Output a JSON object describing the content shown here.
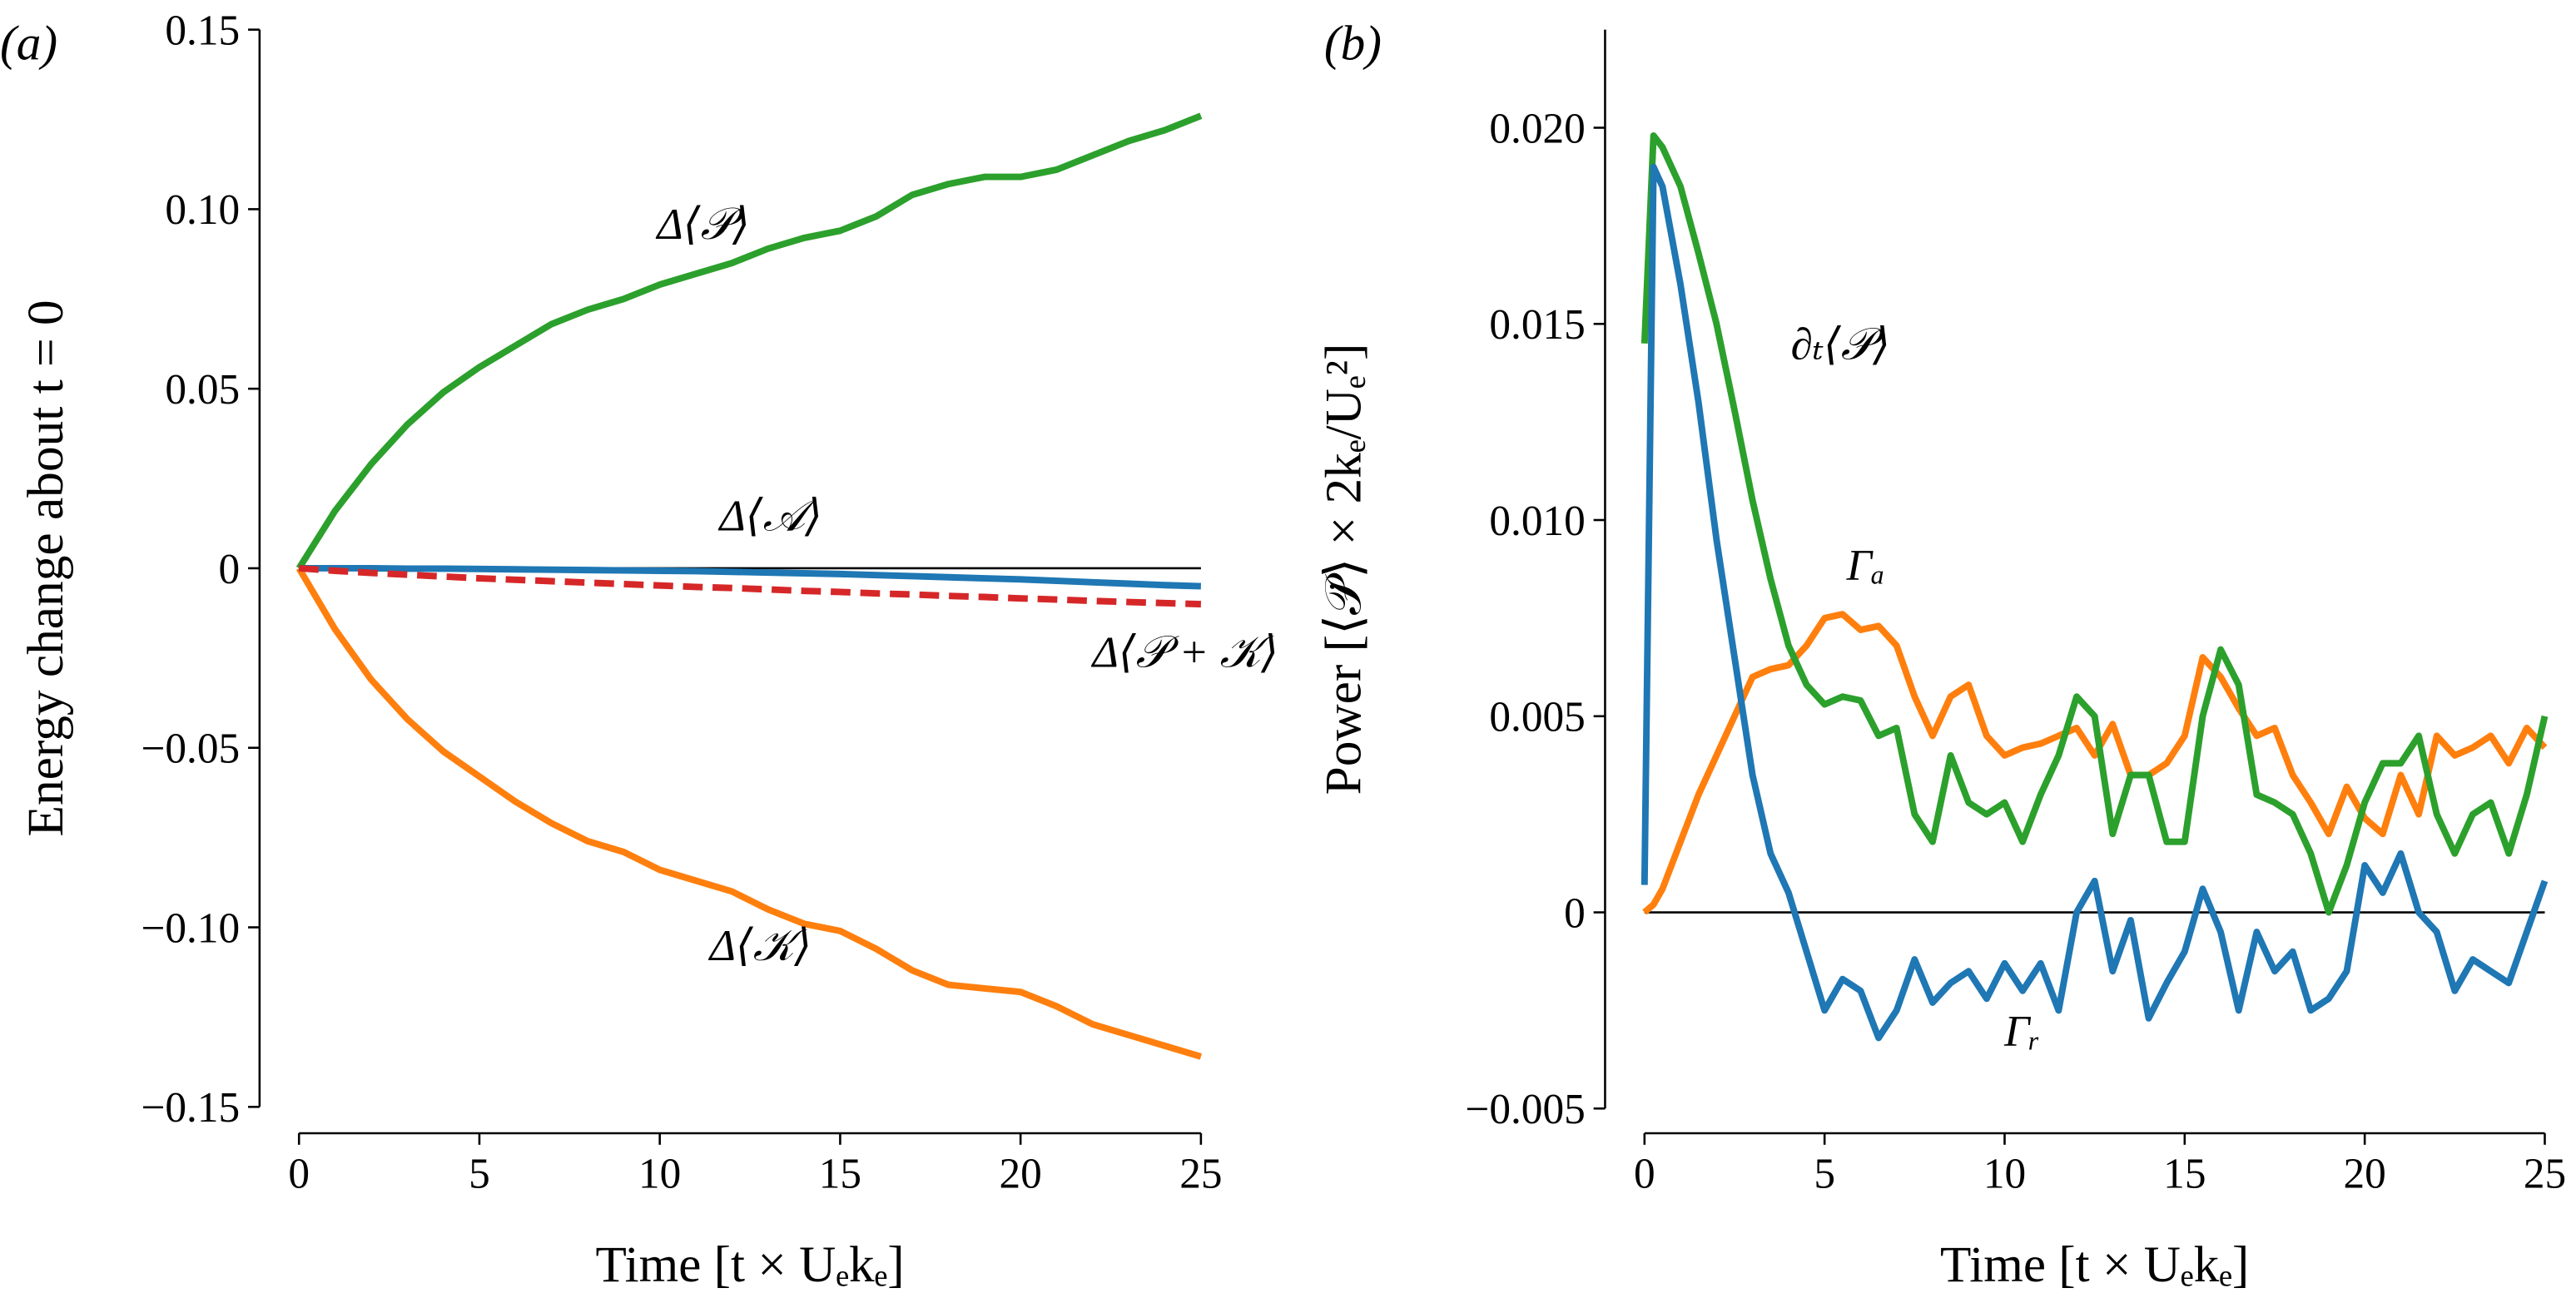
{
  "chart_data": [
    {
      "type": "line",
      "panel": "(a)",
      "ylabel": "Energy change about t = 0",
      "xlabel": "Time [t × Uₑkₑ]",
      "xlim": [
        0,
        25
      ],
      "xticks": [
        0,
        5,
        10,
        15,
        20,
        25
      ],
      "ylim": [
        -0.15,
        0.15
      ],
      "yticks": [
        {
          "value": -0.15,
          "label": "−0.15"
        },
        {
          "value": -0.1,
          "label": "−0.10"
        },
        {
          "value": -0.05,
          "label": "−0.05"
        },
        0,
        0.05,
        {
          "value": 0.1,
          "label": "0.10"
        },
        0.15
      ],
      "hline": 0,
      "x": [
        0,
        1,
        2,
        3,
        4,
        5,
        6,
        7,
        8,
        9,
        10,
        11,
        12,
        13,
        14,
        15,
        16,
        17,
        18,
        19,
        20,
        21,
        22,
        23,
        24,
        25
      ],
      "series": [
        {
          "color": "#2ca02c",
          "values": [
            0,
            0.016,
            0.029,
            0.04,
            0.049,
            0.056,
            0.062,
            0.068,
            0.072,
            0.075,
            0.079,
            0.082,
            0.085,
            0.089,
            0.092,
            0.094,
            0.098,
            0.104,
            0.107,
            0.109,
            0.109,
            0.111,
            0.115,
            0.119,
            0.122,
            0.126
          ]
        },
        {
          "color": "#ff7f0e",
          "values": [
            0,
            -0.017,
            -0.031,
            -0.042,
            -0.051,
            -0.058,
            -0.065,
            -0.071,
            -0.076,
            -0.079,
            -0.084,
            -0.087,
            -0.09,
            -0.095,
            -0.099,
            -0.101,
            -0.106,
            -0.112,
            -0.116,
            -0.117,
            -0.118,
            -0.122,
            -0.127,
            -0.13,
            -0.133,
            -0.136
          ]
        },
        {
          "color": "#1f77b4",
          "values": [
            0,
            0,
            0,
            -0.0001,
            -0.0001,
            -0.0002,
            -0.0003,
            -0.0004,
            -0.0005,
            -0.0006,
            -0.0007,
            -0.0008,
            -0.001,
            -0.0012,
            -0.0014,
            -0.0016,
            -0.0019,
            -0.0022,
            -0.0025,
            -0.0028,
            -0.0031,
            -0.0035,
            -0.0039,
            -0.0043,
            -0.0047,
            -0.005
          ]
        },
        {
          "color": "#d62728",
          "dash": true,
          "values": [
            0,
            -0.0007,
            -0.0013,
            -0.0018,
            -0.0023,
            -0.0028,
            -0.0032,
            -0.0036,
            -0.004,
            -0.0044,
            -0.0048,
            -0.0052,
            -0.0055,
            -0.0059,
            -0.0063,
            -0.0066,
            -0.007,
            -0.0073,
            -0.0077,
            -0.008,
            -0.0084,
            -0.0087,
            -0.0091,
            -0.0094,
            -0.0097,
            -0.01
          ]
        }
      ],
      "annotations": [
        "Δ⟨𝒫⟩",
        "Δ⟨𝒜⟩",
        "Δ⟨𝒫 + 𝒦⟩",
        "Δ⟨𝒦⟩"
      ]
    },
    {
      "type": "line",
      "panel": "(b)",
      "ylabel": "Power [⟨𝒫̇⟩ × 2kₑ/Uₑ²]",
      "xlabel": "Time [t × Uₑkₑ]",
      "xlim": [
        0,
        25
      ],
      "xticks": [
        0,
        5,
        10,
        15,
        20,
        25
      ],
      "ylim": [
        -0.005,
        0.0225
      ],
      "yticks": [
        {
          "value": -0.005,
          "label": "−0.005"
        },
        0,
        {
          "value": 0.005,
          "label": "0.005"
        },
        {
          "value": 0.01,
          "label": "0.010"
        },
        {
          "value": 0.015,
          "label": "0.015"
        },
        {
          "value": 0.02,
          "label": "0.020"
        }
      ],
      "hline": 0,
      "x": [
        0,
        0.25,
        0.5,
        1,
        1.5,
        2,
        2.5,
        3,
        3.5,
        4,
        4.5,
        5,
        5.5,
        6,
        6.5,
        7,
        7.5,
        8,
        8.5,
        9,
        9.5,
        10,
        10.5,
        11,
        11.5,
        12,
        12.5,
        13,
        13.5,
        14,
        14.5,
        15,
        15.5,
        16,
        16.5,
        17,
        17.5,
        18,
        18.5,
        19,
        19.5,
        20,
        20.5,
        21,
        21.5,
        22,
        22.5,
        23,
        23.5,
        24,
        24.5,
        25
      ],
      "series": [
        {
          "color": "#ff7f0e",
          "values": [
            0,
            0.0002,
            0.0006,
            0.0018,
            0.003,
            0.004,
            0.005,
            0.006,
            0.0062,
            0.0063,
            0.0068,
            0.0075,
            0.0076,
            0.0072,
            0.0073,
            0.0068,
            0.0055,
            0.0045,
            0.0055,
            0.0058,
            0.0045,
            0.004,
            0.0042,
            0.0043,
            0.0045,
            0.0047,
            0.004,
            0.0048,
            0.0035,
            0.0035,
            0.0038,
            0.0045,
            0.0065,
            0.006,
            0.0052,
            0.0045,
            0.0047,
            0.0035,
            0.0028,
            0.002,
            0.0032,
            0.0024,
            0.002,
            0.0035,
            0.0025,
            0.0045,
            0.004,
            0.0042,
            0.0045,
            0.0038,
            0.0047,
            0.0042
          ]
        },
        {
          "color": "#2ca02c",
          "values": [
            0.0145,
            0.0198,
            0.0195,
            0.0185,
            0.0168,
            0.015,
            0.0128,
            0.0105,
            0.0085,
            0.0068,
            0.0058,
            0.0053,
            0.0055,
            0.0054,
            0.0045,
            0.0047,
            0.0025,
            0.0018,
            0.004,
            0.0028,
            0.0025,
            0.0028,
            0.0018,
            0.003,
            0.004,
            0.0055,
            0.005,
            0.002,
            0.0035,
            0.0035,
            0.0018,
            0.0018,
            0.005,
            0.0067,
            0.0058,
            0.003,
            0.0028,
            0.0025,
            0.0015,
            0,
            0.0012,
            0.0028,
            0.0038,
            0.0038,
            0.0045,
            0.0025,
            0.0015,
            0.0025,
            0.0028,
            0.0015,
            0.003,
            0.005
          ]
        },
        {
          "color": "#1f77b4",
          "values": [
            0.0007,
            0.019,
            0.0185,
            0.016,
            0.013,
            0.0095,
            0.0065,
            0.0035,
            0.0015,
            0.0005,
            -0.001,
            -0.0025,
            -0.0017,
            -0.002,
            -0.0032,
            -0.0025,
            -0.0012,
            -0.0023,
            -0.0018,
            -0.0015,
            -0.0022,
            -0.0013,
            -0.002,
            -0.0013,
            -0.0025,
            0,
            0.0008,
            -0.0015,
            -0.0002,
            -0.0027,
            -0.0018,
            -0.001,
            0.0006,
            -0.0005,
            -0.0025,
            -0.0005,
            -0.0015,
            -0.001,
            -0.0025,
            -0.0022,
            -0.0015,
            0.0012,
            0.0005,
            0.0015,
            0,
            -0.0005,
            -0.002,
            -0.0012,
            -0.0015,
            -0.0018,
            -0.0005,
            0.0008
          ]
        }
      ],
      "annotations": [
        "∂ₜ⟨𝒫⟩",
        "Γₐ",
        "Γᵣ"
      ]
    }
  ]
}
